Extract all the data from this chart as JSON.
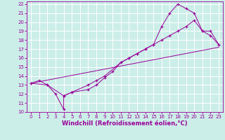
{
  "xlabel": "Windchill (Refroidissement éolien,°C)",
  "bg_color": "#cceee8",
  "line_color": "#990099",
  "grid_color": "#ffffff",
  "xlim": [
    -0.5,
    23.5
  ],
  "ylim": [
    10,
    22.3
  ],
  "xticks": [
    0,
    1,
    2,
    3,
    4,
    5,
    6,
    7,
    8,
    9,
    10,
    11,
    12,
    13,
    14,
    15,
    16,
    17,
    18,
    19,
    20,
    21,
    22,
    23
  ],
  "yticks": [
    10,
    11,
    12,
    13,
    14,
    15,
    16,
    17,
    18,
    19,
    20,
    21,
    22
  ],
  "line1_x": [
    0,
    1,
    2,
    3,
    4,
    4,
    5,
    7,
    8,
    9,
    10,
    11,
    12,
    13,
    14,
    15,
    16,
    17,
    18,
    19,
    20,
    21,
    22,
    23
  ],
  "line1_y": [
    13.2,
    13.5,
    13.0,
    12.0,
    10.3,
    11.8,
    12.2,
    12.5,
    13.0,
    13.8,
    14.5,
    15.5,
    16.0,
    16.5,
    17.0,
    17.5,
    18.0,
    18.5,
    19.0,
    19.5,
    20.2,
    19.0,
    18.5,
    17.5
  ],
  "line2_x": [
    0,
    2,
    4,
    5,
    7,
    8,
    9,
    11,
    12,
    13,
    14,
    15,
    16,
    17,
    18,
    19,
    20,
    21,
    22,
    23
  ],
  "line2_y": [
    13.2,
    13.0,
    11.8,
    12.2,
    13.0,
    13.5,
    14.0,
    15.5,
    16.0,
    16.5,
    17.0,
    17.5,
    19.5,
    21.0,
    22.0,
    21.5,
    21.0,
    19.0,
    19.0,
    17.5
  ],
  "line3_x": [
    0,
    23
  ],
  "line3_y": [
    13.2,
    17.2
  ],
  "tick_fontsize": 5.0,
  "xlabel_fontsize": 6.0
}
